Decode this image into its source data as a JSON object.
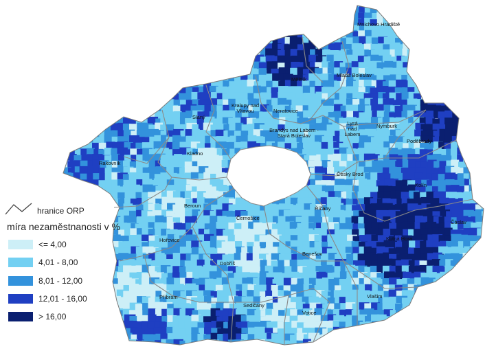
{
  "legend": {
    "boundary_label": "hranice ORP",
    "title": "míra nezaměstnanosti v %",
    "classes": [
      {
        "label": "<= 4,00",
        "color": "#cdeff7"
      },
      {
        "label": "4,01 - 8,00",
        "color": "#73d0f2"
      },
      {
        "label": "8,01 - 12,00",
        "color": "#3392dc"
      },
      {
        "label": "12,01 - 16,00",
        "color": "#1f3fc2"
      },
      {
        "label": "> 16,00",
        "color": "#0a1f70"
      }
    ]
  },
  "towns": [
    "Mnichovo Hradiště",
    "Mladá Boleslav",
    "Mělník",
    "Kralupy nad Vltavou",
    "Neratovice",
    "Slaný",
    "Brandýs nad Labem - Stará Boleslav",
    "Lysá nad Labem",
    "Nymburk",
    "Poděbrady",
    "Rakovník",
    "Kladno",
    "Český Brod",
    "Kolín",
    "Beroun",
    "Říčany",
    "Černošice",
    "Čáslav",
    "Hořovice",
    "Kutná Hora",
    "Benešov",
    "Dobříš",
    "Příbram",
    "Vlašim",
    "Sedlčany",
    "Votice"
  ]
}
